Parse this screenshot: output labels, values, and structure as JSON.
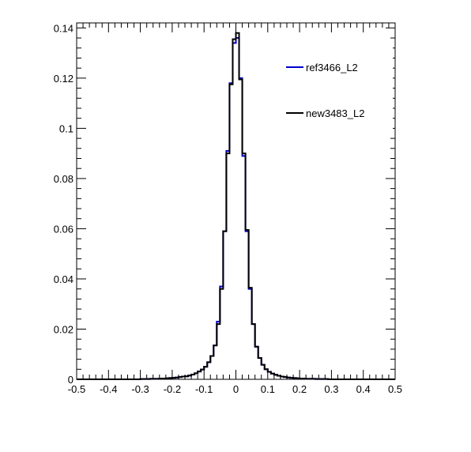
{
  "chart_data": {
    "type": "step-histogram",
    "xlim": [
      -0.5,
      0.5
    ],
    "ylim": [
      0,
      0.142
    ],
    "grid": false,
    "legend_placement": "top-right",
    "x_ticks": [
      -0.5,
      -0.4,
      -0.3,
      -0.2,
      -0.1,
      0,
      0.1,
      0.2,
      0.3,
      0.4,
      0.5
    ],
    "x_tick_labels": [
      "-0.5",
      "-0.4",
      "-0.3",
      "-0.2",
      "-0.1",
      "0",
      "0.1",
      "0.2",
      "0.3",
      "0.4",
      "0.5"
    ],
    "y_ticks": [
      0,
      0.02,
      0.04,
      0.06,
      0.08,
      0.1,
      0.12,
      0.14
    ],
    "y_tick_labels": [
      "0",
      "0.02",
      "0.04",
      "0.06",
      "0.08",
      "0.1",
      "0.12",
      "0.14"
    ],
    "bin_width": 0.01,
    "bin_start": -0.5,
    "series": [
      {
        "name": "ref3466_L2",
        "color": "#0000cc",
        "values": [
          0,
          0,
          0,
          0,
          0,
          0,
          0,
          0,
          0,
          0,
          0,
          0,
          0,
          0,
          0,
          0,
          0,
          0,
          0,
          0,
          0.0001,
          0.0001,
          0.0001,
          0.0002,
          0.0002,
          0.0002,
          0.0003,
          0.0003,
          0.0004,
          0.0005,
          0.0006,
          0.0007,
          0.0009,
          0.0011,
          0.0012,
          0.0015,
          0.0019,
          0.0024,
          0.0031,
          0.0039,
          0.005,
          0.0068,
          0.0093,
          0.0135,
          0.023,
          0.037,
          0.059,
          0.091,
          0.118,
          0.134,
          0.136,
          0.12,
          0.089,
          0.059,
          0.036,
          0.022,
          0.013,
          0.0085,
          0.0058,
          0.004,
          0.003,
          0.0023,
          0.0018,
          0.0014,
          0.0011,
          0.0009,
          0.0007,
          0.0006,
          0.0005,
          0.0004,
          0.0003,
          0.0003,
          0.0002,
          0.0002,
          0.0002,
          0.0001,
          0.0001,
          0.0001,
          0.0001,
          0,
          0,
          0,
          0,
          0,
          0,
          0,
          0,
          0,
          0,
          0,
          0,
          0,
          0,
          0,
          0,
          0,
          0,
          0,
          0,
          0
        ]
      },
      {
        "name": "new3483_L2",
        "color": "#000000",
        "values": [
          0,
          0,
          0,
          0,
          0,
          0,
          0,
          0,
          0,
          0,
          0,
          0,
          0,
          0,
          0,
          0,
          0,
          0,
          0,
          0,
          0.0001,
          0.0001,
          0.0001,
          0.0002,
          0.0002,
          0.0002,
          0.0003,
          0.0003,
          0.0004,
          0.0005,
          0.0006,
          0.0007,
          0.0009,
          0.0011,
          0.0012,
          0.0015,
          0.0019,
          0.0024,
          0.0031,
          0.0039,
          0.005,
          0.0068,
          0.0093,
          0.0135,
          0.022,
          0.036,
          0.059,
          0.09,
          0.1175,
          0.1355,
          0.138,
          0.1195,
          0.09,
          0.0595,
          0.0365,
          0.022,
          0.013,
          0.0085,
          0.0058,
          0.004,
          0.003,
          0.0023,
          0.0018,
          0.0014,
          0.0011,
          0.0009,
          0.0007,
          0.0006,
          0.0005,
          0.0004,
          0.0003,
          0.0003,
          0.0002,
          0.0002,
          0.0002,
          0.0001,
          0.0001,
          0.0001,
          0.0001,
          0,
          0,
          0,
          0,
          0,
          0,
          0,
          0,
          0,
          0,
          0,
          0,
          0,
          0,
          0,
          0,
          0,
          0,
          0,
          0,
          0
        ]
      }
    ]
  }
}
